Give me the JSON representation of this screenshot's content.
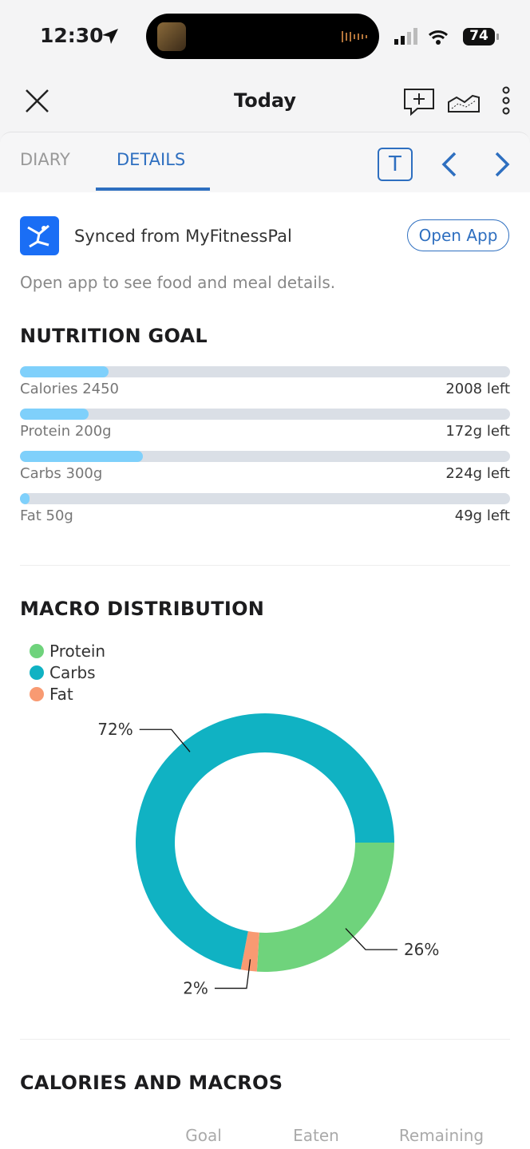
{
  "status_bar": {
    "time": "12:30",
    "battery": "74"
  },
  "header": {
    "title": "Today"
  },
  "tabs": {
    "items": [
      "DIARY",
      "DETAILS"
    ],
    "active": 1,
    "format_icon": "T"
  },
  "sync": {
    "title": "Synced from MyFitnessPal",
    "button": "Open App",
    "note": "Open app to see food and meal details."
  },
  "nutrition_goal": {
    "title": "NUTRITION GOAL",
    "items": [
      {
        "label": "Calories 2450",
        "left": "2008 left",
        "progress": 0.18
      },
      {
        "label": "Protein 200g",
        "left": "172g left",
        "progress": 0.14
      },
      {
        "label": "Carbs 300g",
        "left": "224g left",
        "progress": 0.25
      },
      {
        "label": "Fat 50g",
        "left": "49g left",
        "progress": 0.02
      }
    ]
  },
  "chart_data": {
    "type": "donut",
    "title": "MACRO DISTRIBUTION",
    "categories": [
      "Protein",
      "Carbs",
      "Fat"
    ],
    "values": [
      26,
      72,
      2
    ],
    "value_labels": [
      "26%",
      "72%",
      "2%"
    ],
    "colors": [
      "#6fd37c",
      "#10b2c3",
      "#f89a72"
    ]
  },
  "calories_and_macros": {
    "title": "CALORIES AND MACROS",
    "columns": [
      "Goal",
      "Eaten",
      "Remaining"
    ]
  }
}
